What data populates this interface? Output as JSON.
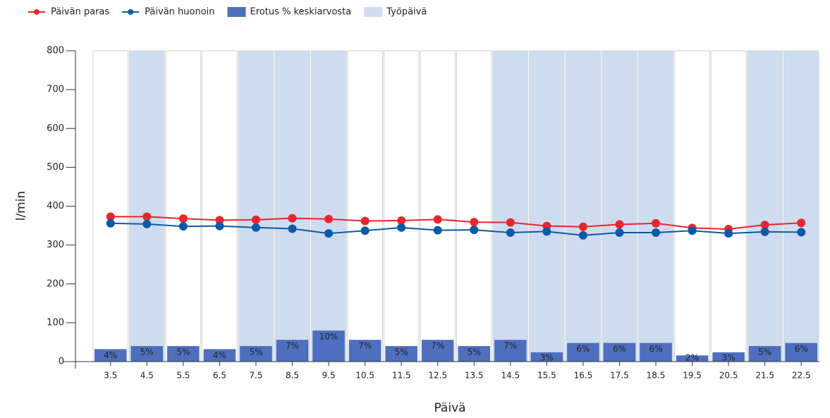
{
  "chart_data": {
    "type": "combo",
    "x_label": "Päivä",
    "y_label": "l/min",
    "legend": "top-left",
    "categories": [
      "3.5",
      "4.5",
      "5.5",
      "6.5",
      "7.5",
      "8.5",
      "9.5",
      "10.5",
      "11.5",
      "12.5",
      "13.5",
      "14.5",
      "15.5",
      "16.5",
      "17.5",
      "18.5",
      "19.5",
      "20.5",
      "21.5",
      "22.5"
    ],
    "ylim": [
      0,
      800
    ],
    "yticks": [
      0,
      100,
      200,
      300,
      400,
      500,
      600,
      700,
      800
    ],
    "y2lim": [
      0,
      100
    ],
    "series": [
      {
        "name": "Päivän paras",
        "type": "line",
        "color": "#e8262e",
        "values": [
          373,
          373,
          368,
          364,
          365,
          369,
          367,
          362,
          363,
          366,
          359,
          358,
          349,
          347,
          353,
          356,
          344,
          341,
          352,
          357
        ]
      },
      {
        "name": "Päivän huonoin",
        "type": "line",
        "color": "#0b5aa8",
        "values": [
          356,
          354,
          348,
          349,
          345,
          342,
          330,
          337,
          345,
          338,
          339,
          332,
          335,
          325,
          332,
          332,
          337,
          330,
          334,
          333
        ]
      },
      {
        "name": "Erotus % keskiarvosta",
        "type": "bar",
        "axis": "y2",
        "color": "#4e6fbd",
        "values": [
          4,
          5,
          5,
          4,
          5,
          7,
          10,
          7,
          5,
          7,
          5,
          7,
          3,
          6,
          6,
          6,
          2,
          3,
          5,
          6
        ],
        "value_labels": [
          "4%",
          "5%",
          "5%",
          "4%",
          "5%",
          "7%",
          "10%",
          "7%",
          "5%",
          "7%",
          "5%",
          "7%",
          "3%",
          "6%",
          "6%",
          "6%",
          "2%",
          "3%",
          "5%",
          "6%"
        ]
      },
      {
        "name": "Työpäivä",
        "type": "bar",
        "color": "#cfdcef",
        "values": [
          0,
          800,
          0,
          0,
          800,
          800,
          800,
          0,
          0,
          0,
          0,
          800,
          800,
          800,
          800,
          800,
          0,
          0,
          800,
          800
        ]
      }
    ]
  }
}
